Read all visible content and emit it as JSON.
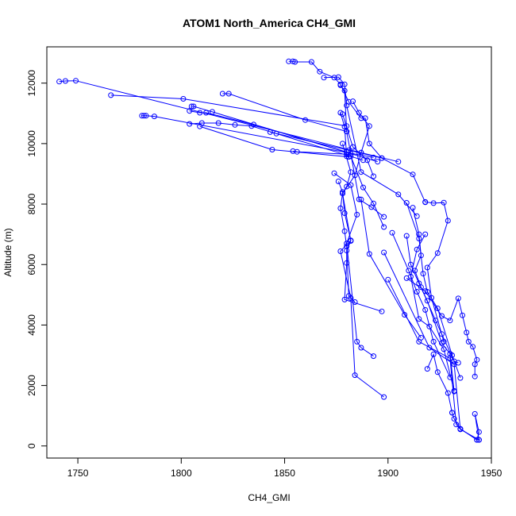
{
  "chart_data": {
    "type": "line",
    "title": "ATOM1 North_America CH4_GMI",
    "xlabel": "CH4_GMI",
    "ylabel": "Altitude (m)",
    "xlim": [
      1735,
      1950
    ],
    "ylim": [
      -400,
      13200
    ],
    "xticks": [
      1750,
      1800,
      1850,
      1900,
      1950
    ],
    "yticks": [
      0,
      2000,
      4000,
      6000,
      8000,
      10000,
      12000
    ],
    "grid": false,
    "legend": "none",
    "color": "#0000ff",
    "marker": "open-circle",
    "series": [
      {
        "values": [
          [
            1741,
            12050
          ],
          [
            1744,
            12070
          ],
          [
            1749,
            12080
          ],
          [
            1887,
            9700
          ],
          [
            1905,
            9400
          ]
        ]
      },
      {
        "values": [
          [
            1766,
            11600
          ],
          [
            1801,
            11480
          ],
          [
            1880,
            10580
          ]
        ]
      },
      {
        "values": [
          [
            1781,
            10920
          ],
          [
            1782,
            10920
          ],
          [
            1783,
            10920
          ],
          [
            1787,
            10900
          ],
          [
            1893,
            9540
          ]
        ]
      },
      {
        "values": [
          [
            1805,
            11230
          ],
          [
            1806,
            11230
          ],
          [
            1815,
            11050
          ],
          [
            1895,
            9400
          ]
        ]
      },
      {
        "values": [
          [
            1804,
            11080
          ],
          [
            1809,
            11020
          ],
          [
            1812,
            11020
          ],
          [
            1835,
            10630
          ],
          [
            1880,
            9720
          ]
        ]
      },
      {
        "values": [
          [
            1804,
            10650
          ],
          [
            1810,
            10680
          ],
          [
            1818,
            10680
          ],
          [
            1826,
            10620
          ],
          [
            1834,
            10580
          ],
          [
            1846,
            10330
          ],
          [
            1888,
            9450
          ]
        ]
      },
      {
        "values": [
          [
            1809,
            10570
          ],
          [
            1844,
            9800
          ],
          [
            1881,
            9560
          ]
        ]
      },
      {
        "values": [
          [
            1820,
            11650
          ],
          [
            1823,
            11650
          ],
          [
            1860,
            10780
          ],
          [
            1880,
            10400
          ]
        ]
      },
      {
        "values": [
          [
            1843,
            10380
          ],
          [
            1881,
            9780
          ],
          [
            1897,
            9520
          ]
        ]
      },
      {
        "values": [
          [
            1854,
            9750
          ],
          [
            1856,
            9730
          ],
          [
            1880,
            9650
          ]
        ]
      },
      {
        "values": [
          [
            1852,
            12720
          ],
          [
            1854,
            12720
          ],
          [
            1855,
            12700
          ],
          [
            1863,
            12700
          ],
          [
            1867,
            12380
          ],
          [
            1874,
            12180
          ],
          [
            1877,
            11960
          ],
          [
            1881,
            11380
          ],
          [
            1887,
            10840
          ],
          [
            1889,
            10840
          ],
          [
            1891,
            10000
          ],
          [
            1897,
            9520
          ],
          [
            1912,
            8980
          ],
          [
            1918,
            8060
          ]
        ]
      },
      {
        "values": [
          [
            1869,
            12180
          ],
          [
            1876,
            12200
          ],
          [
            1879,
            11960
          ],
          [
            1880,
            11260
          ],
          [
            1887,
            9060
          ],
          [
            1905,
            8320
          ],
          [
            1914,
            7600
          ]
        ]
      },
      {
        "values": [
          [
            1877,
            11930
          ],
          [
            1879,
            11750
          ],
          [
            1880,
            10400
          ],
          [
            1882,
            9660
          ],
          [
            1886,
            8160
          ],
          [
            1892,
            7900
          ],
          [
            1898,
            7580
          ]
        ]
      },
      {
        "values": [
          [
            1877,
            11020
          ],
          [
            1879,
            10560
          ],
          [
            1880,
            9580
          ],
          [
            1882,
            9580
          ],
          [
            1888,
            8550
          ],
          [
            1893,
            8020
          ],
          [
            1898,
            7240
          ]
        ]
      },
      {
        "values": [
          [
            1878,
            10980
          ],
          [
            1883,
            9890
          ],
          [
            1890,
            9450
          ],
          [
            1893,
            8920
          ]
        ]
      },
      {
        "values": [
          [
            1883,
            11400
          ],
          [
            1886,
            11020
          ],
          [
            1891,
            10580
          ],
          [
            1887,
            9700
          ],
          [
            1884,
            8950
          ],
          [
            1878,
            8350
          ],
          [
            1877,
            7860
          ],
          [
            1879,
            7100
          ],
          [
            1880,
            6600
          ],
          [
            1881,
            4960
          ],
          [
            1884,
            4760
          ]
        ]
      },
      {
        "values": [
          [
            1878,
            10000
          ],
          [
            1882,
            9060
          ],
          [
            1880,
            8580
          ],
          [
            1878,
            8350
          ],
          [
            1882,
            6780
          ],
          [
            1880,
            6460
          ],
          [
            1880,
            6050
          ],
          [
            1879,
            4840
          ],
          [
            1897,
            4450
          ]
        ]
      },
      {
        "values": [
          [
            1874,
            9020
          ],
          [
            1882,
            8630
          ],
          [
            1885,
            7650
          ],
          [
            1880,
            6700
          ],
          [
            1885,
            3450
          ],
          [
            1887,
            3250
          ],
          [
            1893,
            2970
          ]
        ]
      },
      {
        "values": [
          [
            1876,
            8750
          ],
          [
            1878,
            8400
          ],
          [
            1879,
            7700
          ],
          [
            1882,
            6800
          ],
          [
            1877,
            6440
          ],
          [
            1882,
            4890
          ],
          [
            1884,
            2340
          ],
          [
            1898,
            1620
          ]
        ]
      },
      {
        "values": [
          [
            1887,
            8150
          ],
          [
            1891,
            6350
          ],
          [
            1908,
            4340
          ],
          [
            1916,
            3580
          ]
        ]
      },
      {
        "values": [
          [
            1918,
            8070
          ],
          [
            1922,
            8030
          ],
          [
            1927,
            8050
          ],
          [
            1929,
            7450
          ],
          [
            1924,
            6380
          ],
          [
            1919,
            5900
          ],
          [
            1921,
            4900
          ],
          [
            1927,
            3450
          ]
        ]
      },
      {
        "values": [
          [
            1909,
            8040
          ],
          [
            1915,
            6860
          ],
          [
            1917,
            5700
          ],
          [
            1919,
            5100
          ],
          [
            1924,
            4550
          ],
          [
            1931,
            3000
          ],
          [
            1935,
            2250
          ]
        ]
      },
      {
        "values": [
          [
            1912,
            7880
          ],
          [
            1915,
            7000
          ],
          [
            1916,
            6300
          ],
          [
            1913,
            5800
          ],
          [
            1916,
            5250
          ],
          [
            1923,
            4150
          ],
          [
            1926,
            3700
          ],
          [
            1932,
            2800
          ],
          [
            1934,
            2750
          ]
        ]
      },
      {
        "values": [
          [
            1909,
            6950
          ],
          [
            1911,
            6000
          ],
          [
            1915,
            5380
          ],
          [
            1919,
            4800
          ],
          [
            1926,
            3400
          ],
          [
            1930,
            3050
          ],
          [
            1932,
            1800
          ]
        ]
      },
      {
        "values": [
          [
            1902,
            7050
          ],
          [
            1910,
            5800
          ],
          [
            1914,
            5100
          ],
          [
            1918,
            4500
          ],
          [
            1922,
            3450
          ],
          [
            1930,
            2270
          ]
        ]
      },
      {
        "values": [
          [
            1918,
            7000
          ],
          [
            1914,
            6500
          ],
          [
            1911,
            5600
          ],
          [
            1915,
            4200
          ],
          [
            1920,
            3950
          ],
          [
            1927,
            3200
          ],
          [
            1932,
            1820
          ]
        ]
      },
      {
        "values": [
          [
            1909,
            5550
          ],
          [
            1918,
            5120
          ],
          [
            1926,
            4300
          ],
          [
            1930,
            4150
          ],
          [
            1934,
            4880
          ],
          [
            1936,
            4320
          ],
          [
            1938,
            3750
          ],
          [
            1939,
            3450
          ],
          [
            1941,
            3280
          ],
          [
            1943,
            2850
          ],
          [
            1942,
            2700
          ],
          [
            1942,
            2300
          ]
        ]
      },
      {
        "values": [
          [
            1919,
            2550
          ],
          [
            1922,
            3030
          ],
          [
            1924,
            2440
          ],
          [
            1929,
            1750
          ],
          [
            1931,
            1100
          ]
        ]
      },
      {
        "values": [
          [
            1931,
            1100
          ],
          [
            1932,
            900
          ],
          [
            1935,
            570
          ],
          [
            1943,
            200
          ],
          [
            1944,
            200
          ],
          [
            1942,
            1060
          ],
          [
            1944,
            460
          ],
          [
            1943,
            200
          ]
        ]
      },
      {
        "values": [
          [
            1900,
            5500
          ],
          [
            1915,
            3450
          ],
          [
            1930,
            2900
          ],
          [
            1933,
            710
          ],
          [
            1935,
            550
          ]
        ]
      },
      {
        "values": [
          [
            1898,
            6400
          ],
          [
            1920,
            3250
          ],
          [
            1932,
            2700
          ],
          [
            1935,
            550
          ],
          [
            1944,
            200
          ]
        ]
      }
    ]
  }
}
